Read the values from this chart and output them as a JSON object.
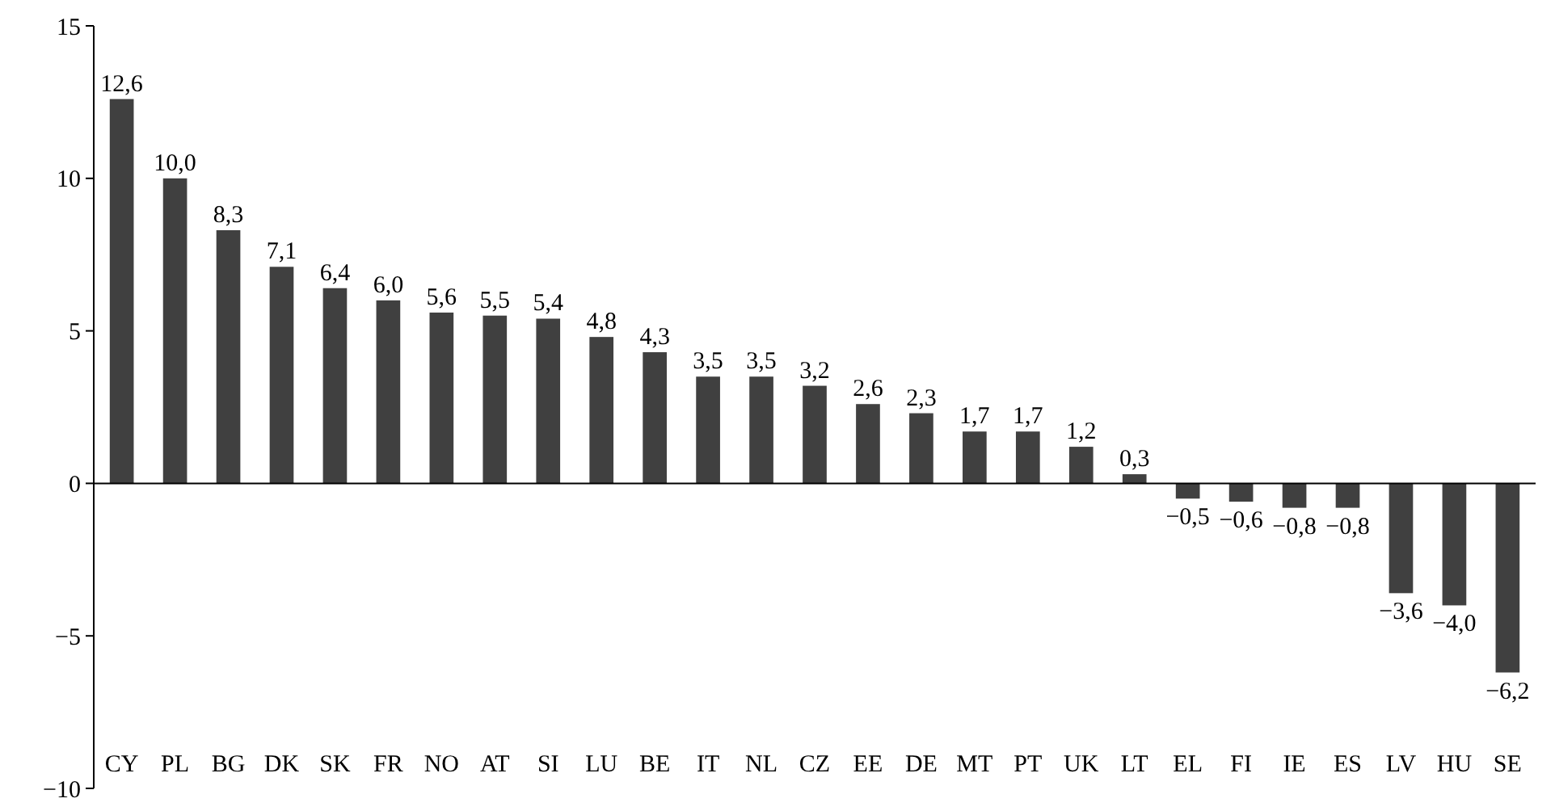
{
  "chart_data": {
    "type": "bar",
    "categories": [
      "CY",
      "PL",
      "BG",
      "DK",
      "SK",
      "FR",
      "NO",
      "AT",
      "SI",
      "LU",
      "BE",
      "IT",
      "NL",
      "CZ",
      "EE",
      "DE",
      "MT",
      "PT",
      "UK",
      "LT",
      "EL",
      "FI",
      "IE",
      "ES",
      "LV",
      "HU",
      "SE"
    ],
    "values": [
      12.6,
      10.0,
      8.3,
      7.1,
      6.4,
      6.0,
      5.6,
      5.5,
      5.4,
      4.8,
      4.3,
      3.5,
      3.5,
      3.2,
      2.6,
      2.3,
      1.7,
      1.7,
      1.2,
      0.3,
      -0.5,
      -0.6,
      -0.8,
      -0.8,
      -3.6,
      -4.0,
      -6.2
    ],
    "value_labels": [
      "12,6",
      "10,0",
      "8,3",
      "7,1",
      "6,4",
      "6,0",
      "5,6",
      "5,5",
      "5,4",
      "4,8",
      "4,3",
      "3,5",
      "3,5",
      "3,2",
      "2,6",
      "2,3",
      "1,7",
      "1,7",
      "1,2",
      "0,3",
      "−0,5",
      "−0,6",
      "−0,8",
      "−0,8",
      "−3,6",
      "−4,0",
      "−6,2"
    ],
    "color": "#404040",
    "ylim": [
      -10,
      15
    ],
    "yticks": [
      {
        "value": -10,
        "label": "−10"
      },
      {
        "value": -5,
        "label": "−5"
      },
      0,
      5,
      10,
      15
    ]
  }
}
